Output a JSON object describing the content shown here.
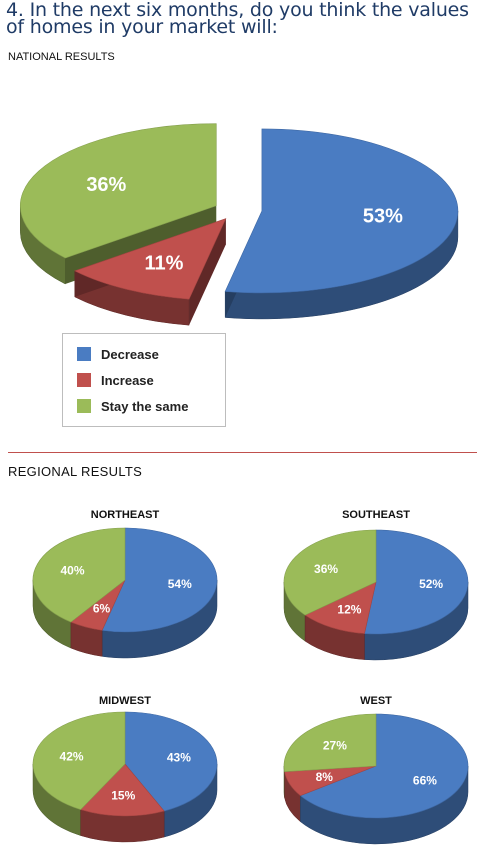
{
  "page": {
    "title": "4. In the next six months, do you think the values of homes in your market will:",
    "national_label": "NATIONAL RESULTS",
    "regional_label": "REGIONAL RESULTS"
  },
  "colors": {
    "Decrease": "#4a7cc2",
    "Increase": "#c0504d",
    "Stay the same": "#9bbb59"
  },
  "legend": {
    "items": [
      {
        "label": "Decrease",
        "color": "#4a7cc2"
      },
      {
        "label": "Increase",
        "color": "#c0504d"
      },
      {
        "label": "Stay the same",
        "color": "#9bbb59"
      }
    ]
  },
  "chart_data": [
    {
      "type": "pie",
      "title": "NATIONAL RESULTS",
      "categories": [
        "Decrease",
        "Increase",
        "Stay the same"
      ],
      "values": [
        53,
        11,
        36
      ],
      "labels": [
        "53%",
        "11%",
        "36%"
      ],
      "exploded": true,
      "three_d": true
    },
    {
      "type": "pie",
      "title": "NORTHEAST",
      "categories": [
        "Decrease",
        "Increase",
        "Stay the same"
      ],
      "values": [
        54,
        6,
        40
      ],
      "labels": [
        "54%",
        "6%",
        "40%"
      ],
      "three_d": true
    },
    {
      "type": "pie",
      "title": "SOUTHEAST",
      "categories": [
        "Decrease",
        "Increase",
        "Stay the same"
      ],
      "values": [
        52,
        12,
        36
      ],
      "labels": [
        "52%",
        "12%",
        "36%"
      ],
      "three_d": true
    },
    {
      "type": "pie",
      "title": "MIDWEST",
      "categories": [
        "Decrease",
        "Increase",
        "Stay the same"
      ],
      "values": [
        43,
        15,
        42
      ],
      "labels": [
        "43%",
        "15%",
        "42%"
      ],
      "three_d": true
    },
    {
      "type": "pie",
      "title": "WEST",
      "categories": [
        "Decrease",
        "Increase",
        "Stay the same"
      ],
      "values": [
        66,
        8,
        27
      ],
      "labels": [
        "66%",
        "8%",
        "27%"
      ],
      "three_d": true
    }
  ]
}
